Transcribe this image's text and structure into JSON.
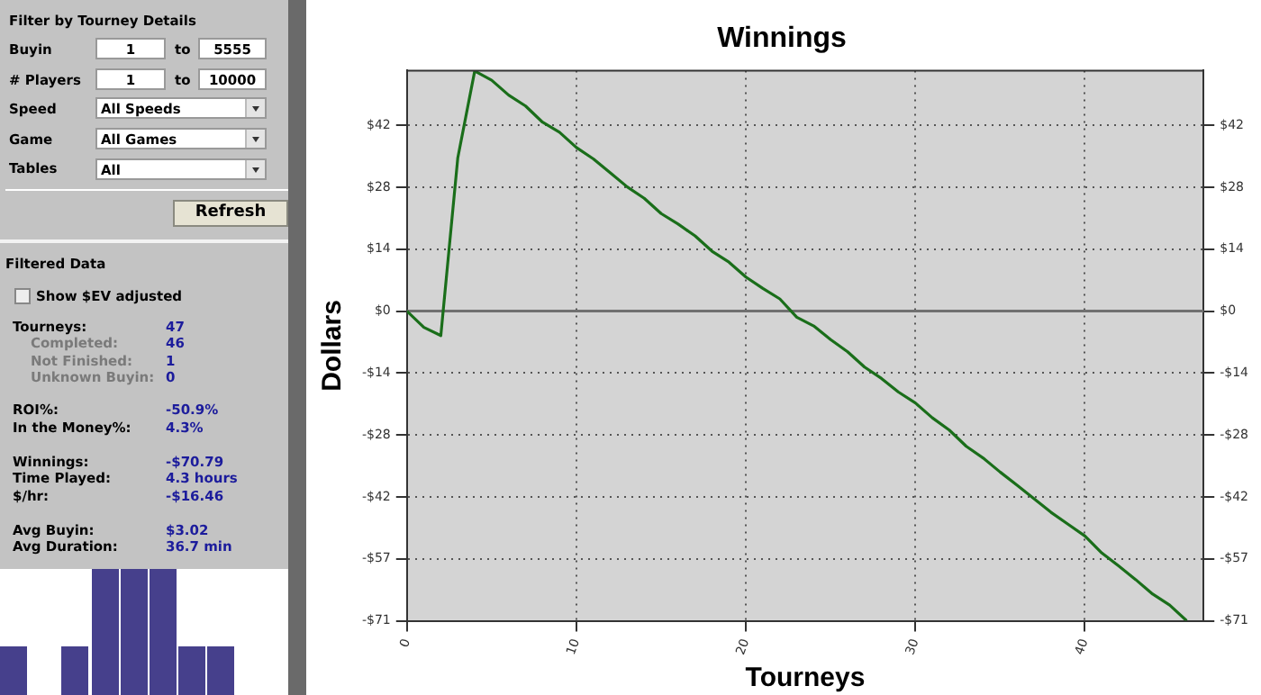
{
  "chart_data": [
    {
      "type": "other",
      "annotations": [
        "Filter by Tourney Details",
        "Buyin",
        "1",
        "to",
        "5555",
        "# Players",
        "1",
        "to",
        "10000",
        "Speed",
        "All Speeds",
        "Game",
        "All Games",
        "Tables",
        "All",
        "Refresh",
        "Filtered Data",
        "Show $EV adjusted",
        "Tourneys:",
        "47",
        "Completed:",
        "46",
        "Not Finished:",
        "1",
        "Unknown Buyin:",
        "0",
        "ROI%:",
        "-50.9%",
        "In the Money%:",
        "4.3%",
        "Winnings:",
        "-$70.79",
        "Time Played:",
        "4.3 hours",
        "$/hr:",
        "-$16.46",
        "Avg Buyin:",
        "$3.02",
        "Avg Duration:",
        "36.7 min"
      ]
    },
    {
      "type": "line",
      "title": "Winnings",
      "xlabel": "Tourneys",
      "ylabel": "Dollars",
      "x": [
        0,
        1,
        2,
        3,
        4,
        5,
        6,
        7,
        8,
        9,
        10,
        11,
        12,
        13,
        14,
        15,
        16,
        17,
        18,
        19,
        20,
        21,
        22,
        23,
        24,
        25,
        26,
        27,
        28,
        29,
        30,
        31,
        32,
        33,
        34,
        35,
        36,
        37,
        38,
        39,
        40,
        41,
        42,
        43,
        44,
        45,
        46
      ],
      "series": [
        {
          "color": "#1a6e1a",
          "values": [
            0,
            -3.7,
            -5.6,
            35,
            54.9,
            52.8,
            49.4,
            46.9,
            43.2,
            40.9,
            37.4,
            34.8,
            31.6,
            28.4,
            25.8,
            22.3,
            19.9,
            17.2,
            13.7,
            11.2,
            7.8,
            5.2,
            2.8,
            -1.4,
            -3.4,
            -6.5,
            -9.3,
            -12.8,
            -15.4,
            -18.5,
            -21,
            -24.4,
            -27.2,
            -30.9,
            -33.6,
            -36.8,
            -39.8,
            -42.9,
            -46,
            -48.7,
            -51.4,
            -55.3,
            -58.3,
            -61.4,
            -64.7,
            -67.2,
            -70.79
          ]
        }
      ],
      "xlim": [
        0,
        47
      ],
      "xticks": [
        0,
        10,
        20,
        30,
        40
      ],
      "ylim": [
        -70.79,
        55
      ],
      "yticks": [
        {
          "value": -70.79,
          "label": "-$71"
        },
        {
          "value": -56.63,
          "label": "-$57"
        },
        {
          "value": -42.47,
          "label": "-$42"
        },
        {
          "value": -28.32,
          "label": "-$28"
        },
        {
          "value": -14.16,
          "label": "-$14"
        },
        {
          "value": 0,
          "label": "$0"
        },
        {
          "value": 14.16,
          "label": "$14"
        },
        {
          "value": 28.32,
          "label": "$28"
        },
        {
          "value": 42.47,
          "label": "$42"
        }
      ],
      "y2lim": [
        -70.79,
        55
      ],
      "y2ticks": [
        {
          "value": -70.79,
          "label": "-$71"
        },
        {
          "value": -56.63,
          "label": "-$57"
        },
        {
          "value": -42.47,
          "label": "-$42"
        },
        {
          "value": -28.32,
          "label": "-$28"
        },
        {
          "value": -14.16,
          "label": "-$14"
        },
        {
          "value": 0,
          "label": "$0"
        },
        {
          "value": 14.16,
          "label": "$14"
        },
        {
          "value": 28.32,
          "label": "$28"
        },
        {
          "value": 42.47,
          "label": "$42"
        }
      ],
      "ref_lines": [
        {
          "axis": "y",
          "value": 0,
          "color": "#707070"
        }
      ],
      "grid": true,
      "marker": "none",
      "line_style": "solid"
    }
  ]
}
